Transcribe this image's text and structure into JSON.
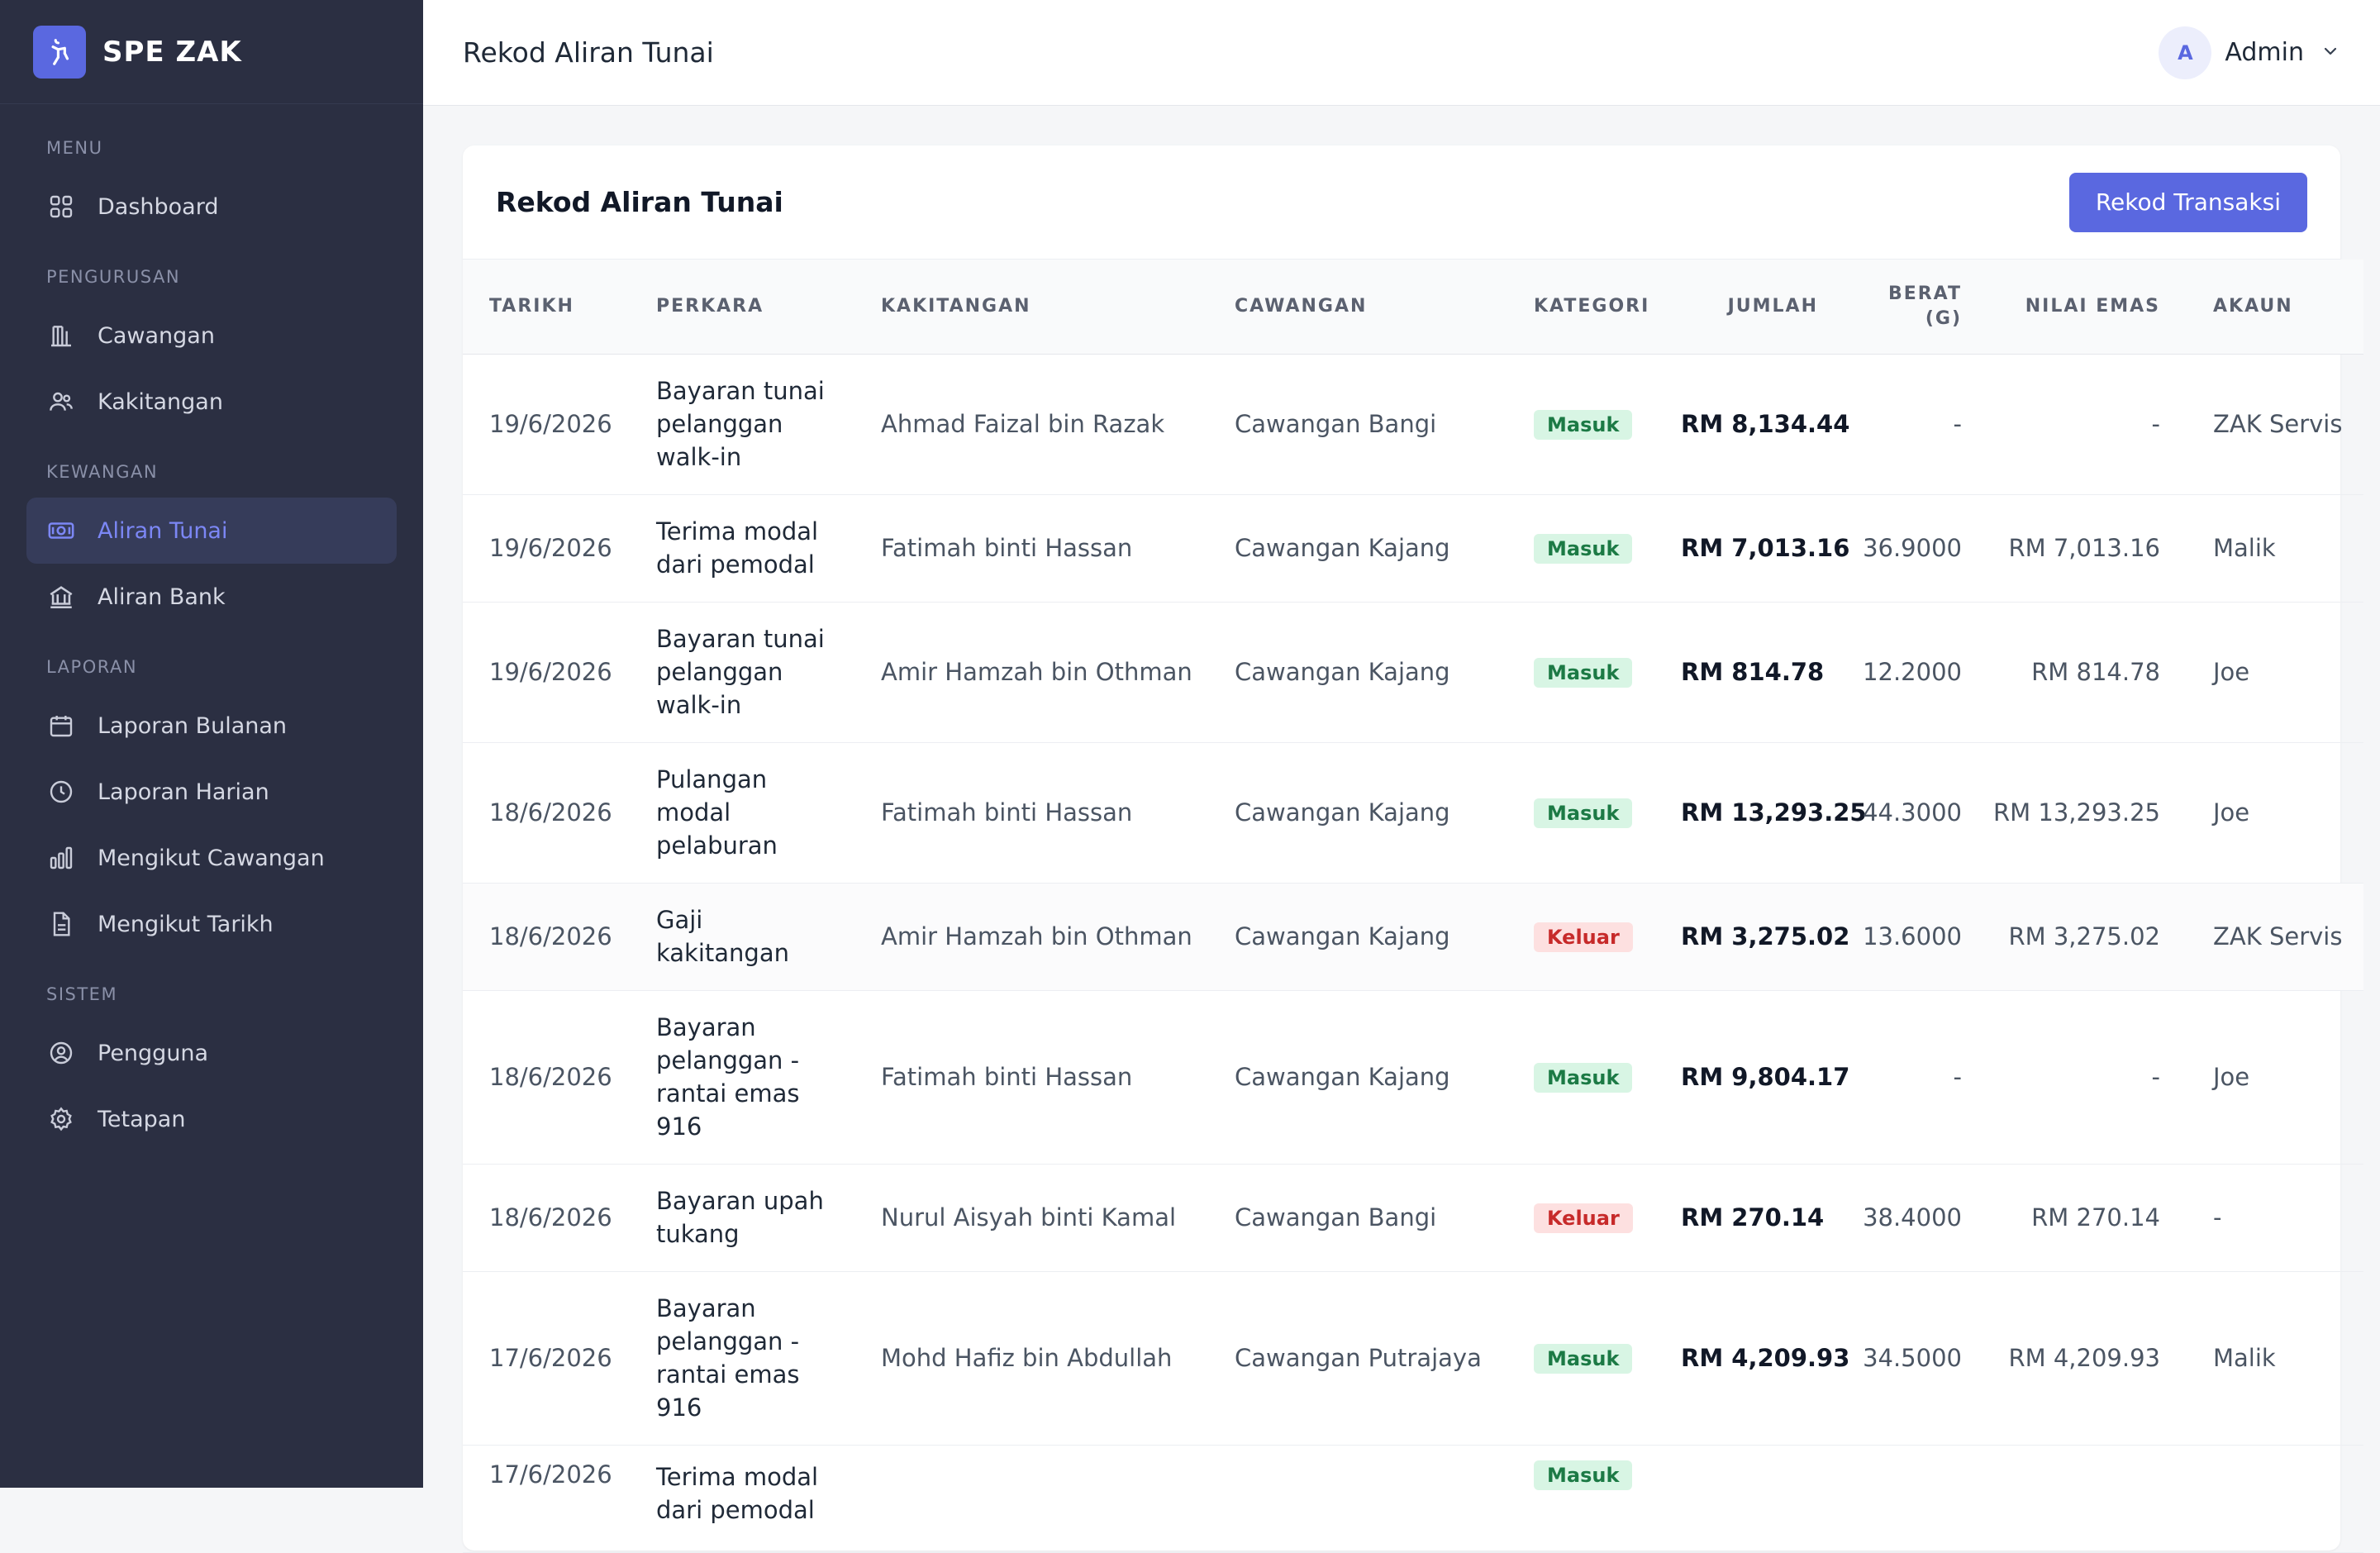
{
  "brand": {
    "name": "SPE ZAK"
  },
  "sidebar": {
    "sections": {
      "menu": "MENU",
      "pengurusan": "PENGURUSAN",
      "kewangan": "KEWANGAN",
      "laporan": "LAPORAN",
      "sistem": "SISTEM"
    },
    "items": {
      "dashboard": "Dashboard",
      "cawangan": "Cawangan",
      "kakitangan": "Kakitangan",
      "aliran_tunai": "Aliran Tunai",
      "aliran_bank": "Aliran Bank",
      "laporan_bulanan": "Laporan Bulanan",
      "laporan_harian": "Laporan Harian",
      "mengikut_cawangan": "Mengikut Cawangan",
      "mengikut_tarikh": "Mengikut Tarikh",
      "pengguna": "Pengguna",
      "tetapan": "Tetapan"
    },
    "active": "aliran_tunai"
  },
  "header": {
    "title": "Rekod Aliran Tunai",
    "user": {
      "initial": "A",
      "name": "Admin"
    }
  },
  "card": {
    "title": "Rekod Aliran Tunai",
    "action_label": "Rekod Transaksi"
  },
  "table": {
    "columns": {
      "tarikh": "TARIKH",
      "perkara": "PERKARA",
      "kakitangan": "KAKITANGAN",
      "cawangan": "CAWANGAN",
      "kategori": "KATEGORI",
      "jumlah": "JUMLAH",
      "berat": "BERAT (G)",
      "nilai_emas": "NILAI EMAS",
      "akaun": "AKAUN"
    },
    "rows": [
      {
        "tarikh": "19/6/2026",
        "perkara": "Bayaran tunai pelanggan walk-in",
        "kakitangan": "Ahmad Faizal bin Razak",
        "cawangan": "Cawangan Bangi",
        "kategori": "Masuk",
        "jumlah": "RM 8,134.44",
        "berat": "-",
        "nilai_emas": "-",
        "akaun": "ZAK Servis"
      },
      {
        "tarikh": "19/6/2026",
        "perkara": "Terima modal dari pemodal",
        "kakitangan": "Fatimah binti Hassan",
        "cawangan": "Cawangan Kajang",
        "kategori": "Masuk",
        "jumlah": "RM 7,013.16",
        "berat": "36.9000",
        "nilai_emas": "RM 7,013.16",
        "akaun": "Malik"
      },
      {
        "tarikh": "19/6/2026",
        "perkara": "Bayaran tunai pelanggan walk-in",
        "kakitangan": "Amir Hamzah bin Othman",
        "cawangan": "Cawangan Kajang",
        "kategori": "Masuk",
        "jumlah": "RM 814.78",
        "berat": "12.2000",
        "nilai_emas": "RM 814.78",
        "akaun": "Joe"
      },
      {
        "tarikh": "18/6/2026",
        "perkara": "Pulangan modal pelaburan",
        "kakitangan": "Fatimah binti Hassan",
        "cawangan": "Cawangan Kajang",
        "kategori": "Masuk",
        "jumlah": "RM 13,293.25",
        "berat": "44.3000",
        "nilai_emas": "RM 13,293.25",
        "akaun": "Joe"
      },
      {
        "tarikh": "18/6/2026",
        "perkara": "Gaji kakitangan",
        "kakitangan": "Amir Hamzah bin Othman",
        "cawangan": "Cawangan Kajang",
        "kategori": "Keluar",
        "jumlah": "RM 3,275.02",
        "berat": "13.6000",
        "nilai_emas": "RM 3,275.02",
        "akaun": "ZAK Servis"
      },
      {
        "tarikh": "18/6/2026",
        "perkara": "Bayaran pelanggan - rantai emas 916",
        "kakitangan": "Fatimah binti Hassan",
        "cawangan": "Cawangan Kajang",
        "kategori": "Masuk",
        "jumlah": "RM 9,804.17",
        "berat": "-",
        "nilai_emas": "-",
        "akaun": "Joe"
      },
      {
        "tarikh": "18/6/2026",
        "perkara": "Bayaran upah tukang",
        "kakitangan": "Nurul Aisyah binti Kamal",
        "cawangan": "Cawangan Bangi",
        "kategori": "Keluar",
        "jumlah": "RM 270.14",
        "berat": "38.4000",
        "nilai_emas": "RM 270.14",
        "akaun": "-"
      },
      {
        "tarikh": "17/6/2026",
        "perkara": "Bayaran pelanggan - rantai emas 916",
        "kakitangan": "Mohd Hafiz bin Abdullah",
        "cawangan": "Cawangan Putrajaya",
        "kategori": "Masuk",
        "jumlah": "RM 4,209.93",
        "berat": "34.5000",
        "nilai_emas": "RM 4,209.93",
        "akaun": "Malik"
      },
      {
        "tarikh": "17/6/2026",
        "perkara": "Terima modal dari pemodal",
        "kakitangan": "",
        "cawangan": "",
        "kategori": "Masuk",
        "jumlah": "",
        "berat": "",
        "nilai_emas": "",
        "akaun": ""
      }
    ]
  },
  "colors": {
    "sidebar_bg": "#2b2f42",
    "accent": "#5a68e0",
    "masuk_bg": "#d8f5e4",
    "keluar_bg": "#fde0e0"
  }
}
